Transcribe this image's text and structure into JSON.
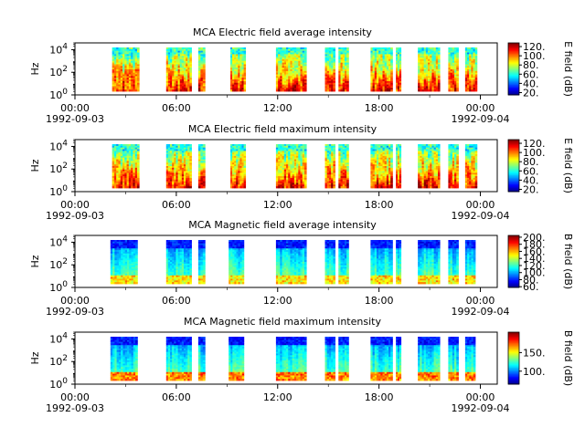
{
  "chart_data": [
    {
      "type": "heatmap",
      "title": "MCA  Electric field average intensity",
      "ylabel": "Hz",
      "yscale": "log",
      "ylim": [
        1,
        40000
      ],
      "y_ticks": [
        {
          "exp": "0",
          "value": 1
        },
        {
          "exp": "2",
          "value": 100
        },
        {
          "exp": "4",
          "value": 10000
        }
      ],
      "xlim": [
        "1992-09-03T00:00",
        "1992-09-04T01:00"
      ],
      "x_ticks": [
        {
          "label": "00:00",
          "sub": "1992-09-03",
          "hour": 0
        },
        {
          "label": "06:00",
          "sub": "",
          "hour": 6
        },
        {
          "label": "12:00",
          "sub": "",
          "hour": 12
        },
        {
          "label": "18:00",
          "sub": "",
          "hour": 18
        },
        {
          "label": "00:00",
          "sub": "1992-09-04",
          "hour": 24
        }
      ],
      "colorbar": {
        "label": "E field (dB)",
        "colormap": "jet",
        "range": [
          15,
          128
        ],
        "ticks": [
          "20.",
          "40.",
          "60.",
          "80.",
          "100.",
          "120."
        ],
        "tick_values": [
          20,
          40,
          60,
          80,
          100,
          120
        ]
      },
      "data_intervals_hours": [
        [
          2.2,
          3.8
        ],
        [
          5.4,
          6.9
        ],
        [
          7.3,
          7.7
        ],
        [
          9.2,
          10.1
        ],
        [
          11.9,
          13.7
        ],
        [
          14.8,
          15.4
        ],
        [
          15.6,
          16.2
        ],
        [
          17.5,
          18.8
        ],
        [
          19.0,
          19.3
        ],
        [
          20.3,
          21.6
        ],
        [
          22.1,
          22.7
        ],
        [
          23.1,
          23.8
        ]
      ],
      "spectrum_profile": "wideband"
    },
    {
      "type": "heatmap",
      "title": "MCA  Electric field maximum intensity",
      "ylabel": "Hz",
      "yscale": "log",
      "ylim": [
        1,
        40000
      ],
      "y_ticks": [
        {
          "exp": "0",
          "value": 1
        },
        {
          "exp": "2",
          "value": 100
        },
        {
          "exp": "4",
          "value": 10000
        }
      ],
      "xlim": [
        "1992-09-03T00:00",
        "1992-09-04T01:00"
      ],
      "x_ticks": [
        {
          "label": "00:00",
          "sub": "1992-09-03",
          "hour": 0
        },
        {
          "label": "06:00",
          "sub": "",
          "hour": 6
        },
        {
          "label": "12:00",
          "sub": "",
          "hour": 12
        },
        {
          "label": "18:00",
          "sub": "",
          "hour": 18
        },
        {
          "label": "00:00",
          "sub": "1992-09-04",
          "hour": 24
        }
      ],
      "colorbar": {
        "label": "E field (dB)",
        "colormap": "jet",
        "range": [
          15,
          128
        ],
        "ticks": [
          "20.",
          "40.",
          "60.",
          "80.",
          "100.",
          "120."
        ],
        "tick_values": [
          20,
          40,
          60,
          80,
          100,
          120
        ]
      },
      "data_intervals_hours": [
        [
          2.2,
          3.8
        ],
        [
          5.4,
          6.9
        ],
        [
          7.3,
          7.7
        ],
        [
          9.2,
          10.1
        ],
        [
          11.9,
          13.7
        ],
        [
          14.8,
          15.4
        ],
        [
          15.6,
          16.2
        ],
        [
          17.5,
          18.8
        ],
        [
          19.0,
          19.3
        ],
        [
          20.3,
          21.6
        ],
        [
          22.1,
          22.7
        ],
        [
          23.1,
          23.8
        ]
      ],
      "spectrum_profile": "wideband"
    },
    {
      "type": "heatmap",
      "title": "MCA  Magnetic field average intensity",
      "ylabel": "Hz",
      "yscale": "log",
      "ylim": [
        1,
        40000
      ],
      "y_ticks": [
        {
          "exp": "0",
          "value": 1
        },
        {
          "exp": "2",
          "value": 100
        },
        {
          "exp": "4",
          "value": 10000
        }
      ],
      "xlim": [
        "1992-09-03T00:00",
        "1992-09-04T01:00"
      ],
      "x_ticks": [
        {
          "label": "00:00",
          "sub": "1992-09-03",
          "hour": 0
        },
        {
          "label": "06:00",
          "sub": "",
          "hour": 6
        },
        {
          "label": "12:00",
          "sub": "",
          "hour": 12
        },
        {
          "label": "18:00",
          "sub": "",
          "hour": 18
        },
        {
          "label": "00:00",
          "sub": "1992-09-04",
          "hour": 24
        }
      ],
      "colorbar": {
        "label": "B field (dB)",
        "colormap": "jet",
        "range": [
          58,
          205
        ],
        "ticks": [
          "60.",
          "80.",
          "100.",
          "120.",
          "140.",
          "160.",
          "180.",
          "200."
        ],
        "tick_values": [
          60,
          80,
          100,
          120,
          140,
          160,
          180,
          200
        ]
      },
      "data_intervals_hours": [
        [
          2.1,
          3.7
        ],
        [
          5.4,
          6.9
        ],
        [
          7.3,
          7.7
        ],
        [
          9.1,
          10.0
        ],
        [
          11.9,
          13.7
        ],
        [
          14.8,
          15.4
        ],
        [
          15.6,
          16.2
        ],
        [
          17.5,
          18.8
        ],
        [
          19.0,
          19.3
        ],
        [
          20.3,
          21.6
        ],
        [
          22.1,
          22.7
        ],
        [
          23.1,
          23.7
        ]
      ],
      "spectrum_profile": "magnetic"
    },
    {
      "type": "heatmap",
      "title": "MCA  Magnetic field maximum intensity",
      "ylabel": "Hz",
      "yscale": "log",
      "ylim": [
        1,
        40000
      ],
      "y_ticks": [
        {
          "exp": "0",
          "value": 1
        },
        {
          "exp": "2",
          "value": 100
        },
        {
          "exp": "4",
          "value": 10000
        }
      ],
      "xlim": [
        "1992-09-03T00:00",
        "1992-09-04T01:00"
      ],
      "x_ticks": [
        {
          "label": "00:00",
          "sub": "1992-09-03",
          "hour": 0
        },
        {
          "label": "06:00",
          "sub": "",
          "hour": 6
        },
        {
          "label": "12:00",
          "sub": "",
          "hour": 12
        },
        {
          "label": "18:00",
          "sub": "",
          "hour": 18
        },
        {
          "label": "00:00",
          "sub": "1992-09-04",
          "hour": 24
        }
      ],
      "colorbar": {
        "label": "B field (dB)",
        "colormap": "jet",
        "range": [
          65,
          205
        ],
        "ticks": [
          "100.",
          "150."
        ],
        "tick_values": [
          100,
          150
        ]
      },
      "data_intervals_hours": [
        [
          2.1,
          3.7
        ],
        [
          5.4,
          6.9
        ],
        [
          7.3,
          7.7
        ],
        [
          9.1,
          10.0
        ],
        [
          11.9,
          13.7
        ],
        [
          14.8,
          15.4
        ],
        [
          15.6,
          16.2
        ],
        [
          17.5,
          18.8
        ],
        [
          19.0,
          19.3
        ],
        [
          20.3,
          21.6
        ],
        [
          22.1,
          22.7
        ],
        [
          23.1,
          23.7
        ]
      ],
      "spectrum_profile": "magnetic"
    }
  ]
}
